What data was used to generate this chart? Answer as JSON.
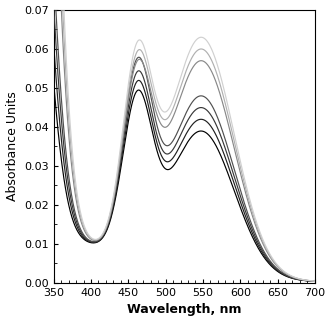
{
  "xlabel": "Wavelength, nm",
  "ylabel": "Absorbance Units",
  "xlim": [
    350,
    700
  ],
  "ylim": [
    0.0,
    0.07
  ],
  "yticks": [
    0.0,
    0.01,
    0.02,
    0.03,
    0.04,
    0.05,
    0.06,
    0.07
  ],
  "xticks": [
    350,
    400,
    450,
    500,
    550,
    600,
    650,
    700
  ],
  "background_color": "#ffffff",
  "curves": [
    {
      "color": "#d0d0d0",
      "a_uv": 0.45,
      "a_460": 0.048,
      "a_548": 0.062
    },
    {
      "color": "#b0b0b0",
      "a_uv": 0.4,
      "a_460": 0.046,
      "a_548": 0.059
    },
    {
      "color": "#888888",
      "a_uv": 0.35,
      "a_460": 0.044,
      "a_548": 0.056
    },
    {
      "color": "#505050",
      "a_uv": 0.22,
      "a_460": 0.046,
      "a_548": 0.047
    },
    {
      "color": "#383838",
      "a_uv": 0.19,
      "a_460": 0.043,
      "a_548": 0.044
    },
    {
      "color": "#202020",
      "a_uv": 0.16,
      "a_460": 0.041,
      "a_548": 0.041
    },
    {
      "color": "#000000",
      "a_uv": 0.13,
      "a_460": 0.039,
      "a_548": 0.038
    }
  ],
  "xlabel_fontsize": 9,
  "ylabel_fontsize": 9,
  "xlabel_bold": true,
  "tick_labelsize": 8
}
